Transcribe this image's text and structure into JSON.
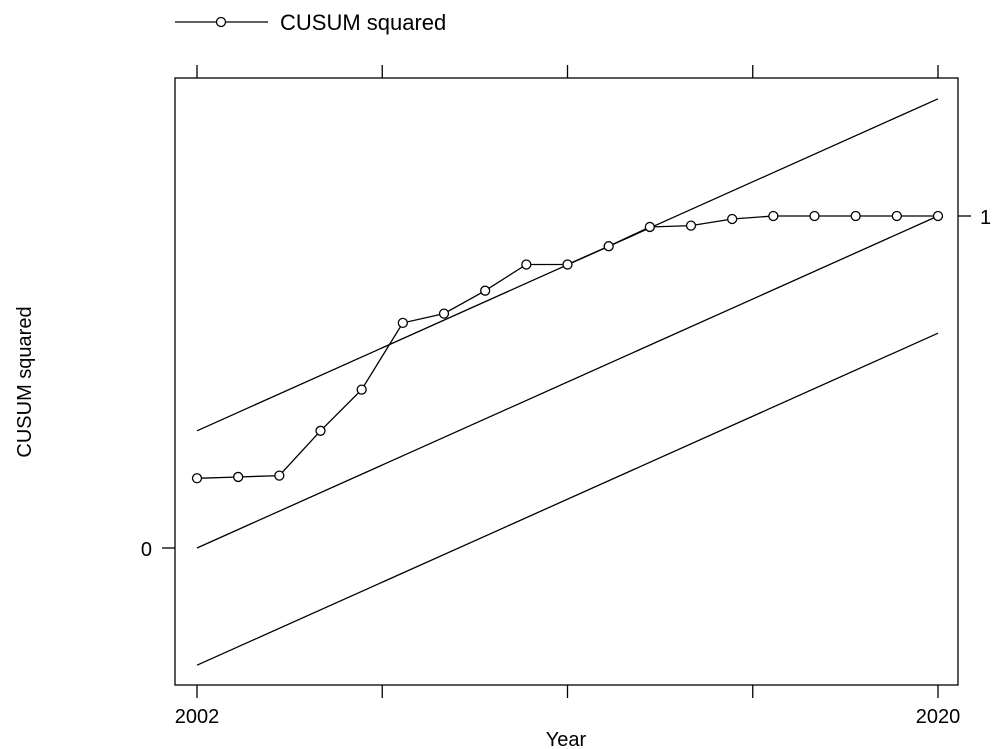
{
  "chart_data": {
    "type": "line",
    "xlabel": "Year",
    "ylabel": "CUSUM squared",
    "xlim": [
      2002,
      2020
    ],
    "ylim": [
      0,
      1
    ],
    "x_tick_labels": [
      "2002",
      "2020"
    ],
    "y_tick_labels": [
      "0",
      "1"
    ],
    "legend": {
      "position": "top-left",
      "entries": [
        "CUSUM squared"
      ]
    },
    "grid": false,
    "series": [
      {
        "name": "CUSUM squared",
        "marker": "circle",
        "x": [
          2002,
          2003,
          2004,
          2005,
          2006,
          2007,
          2008,
          2009,
          2010,
          2011,
          2012,
          2013,
          2014,
          2015,
          2016,
          2017,
          2018,
          2019,
          2020
        ],
        "y": [
          0.21,
          0.214,
          0.218,
          0.353,
          0.477,
          0.678,
          0.706,
          0.775,
          0.854,
          0.854,
          0.909,
          0.967,
          0.971,
          0.991,
          1.0,
          1.0,
          1.0,
          1.0,
          1.0
        ]
      }
    ],
    "reference_lines": [
      {
        "x": [
          2002,
          2020
        ],
        "y": [
          0.353,
          1.353
        ]
      },
      {
        "x": [
          2002,
          2020
        ],
        "y": [
          0.0,
          1.0
        ]
      },
      {
        "x": [
          2002,
          2020
        ],
        "y": [
          -0.353,
          0.647
        ]
      }
    ],
    "colors": {
      "line": "#000000",
      "background": "#ffffff"
    }
  }
}
